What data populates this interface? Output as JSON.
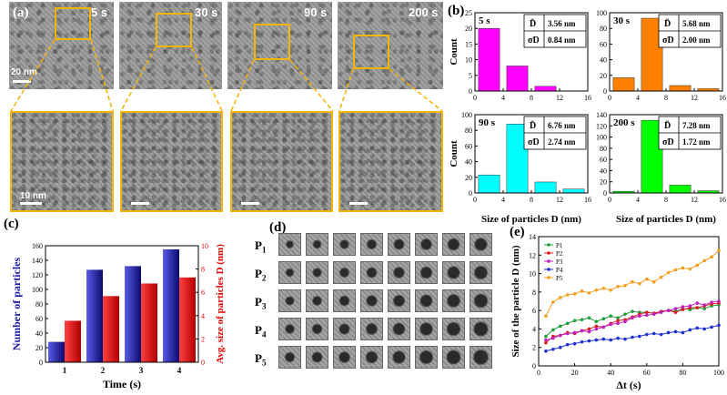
{
  "panel_a": {
    "label": "(a)",
    "frames": [
      "5 s",
      "30 s",
      "90 s",
      "200 s"
    ],
    "scale_top": "20 nm",
    "scale_bottom": "10 nm"
  },
  "panel_b": {
    "label": "(b)",
    "xlabel": "Size of particles D (nm)",
    "ylabel": "Count",
    "mean_symbol": "D̄",
    "sigma_symbol": "σD",
    "histograms": [
      {
        "time": "5 s",
        "mean": "3.56 nm",
        "sigma": "0.84 nm",
        "color": "#ff00ff"
      },
      {
        "time": "30 s",
        "mean": "5.68 nm",
        "sigma": "2.00 nm",
        "color": "#ff8000"
      },
      {
        "time": "90 s",
        "mean": "6.76 nm",
        "sigma": "2.74 nm",
        "color": "#00ffff"
      },
      {
        "time": "200 s",
        "mean": "7.28 nm",
        "sigma": "1.72 nm",
        "color": "#00ff00"
      }
    ]
  },
  "panel_c": {
    "label": "(c)",
    "xlabel": "Time (s)",
    "ylabel_left": "Number of particles",
    "ylabel_right": "Avg. size of particles D (nm)"
  },
  "panel_d": {
    "label": "(d)",
    "rows": [
      "P1",
      "P2",
      "P3",
      "P4",
      "P5"
    ],
    "row_main": "P",
    "row_subs": [
      "1",
      "2",
      "3",
      "4",
      "5"
    ]
  },
  "panel_e": {
    "label": "(e)",
    "xlabel": "Δt (s)",
    "ylabel": "Size of the particle D (nm)",
    "legend": [
      "P1",
      "P2",
      "P3",
      "P4",
      "P5"
    ]
  },
  "chart_data": [
    {
      "type": "bar",
      "panel": "b",
      "title": "5 s",
      "categories": [
        2,
        6,
        10,
        14
      ],
      "values": [
        20,
        8,
        1.5,
        0
      ],
      "xlim": [
        0,
        16
      ],
      "ylim": [
        0,
        25
      ],
      "yticks": [
        0,
        5,
        10,
        15,
        20,
        25
      ],
      "xticks": [
        0,
        4,
        8,
        12,
        16
      ],
      "color": "#ff00ff"
    },
    {
      "type": "bar",
      "panel": "b",
      "title": "30 s",
      "categories": [
        2,
        6,
        10,
        14
      ],
      "values": [
        17,
        93,
        7,
        3
      ],
      "xlim": [
        0,
        16
      ],
      "ylim": [
        0,
        100
      ],
      "yticks": [
        0,
        20,
        40,
        60,
        80,
        100
      ],
      "xticks": [
        0,
        4,
        8,
        12,
        16
      ],
      "color": "#ff8000"
    },
    {
      "type": "bar",
      "panel": "b",
      "title": "90 s",
      "categories": [
        2,
        6,
        10,
        14
      ],
      "values": [
        23,
        88,
        14,
        5
      ],
      "xlim": [
        0,
        16
      ],
      "ylim": [
        0,
        100
      ],
      "yticks": [
        0,
        20,
        40,
        60,
        80,
        100
      ],
      "xticks": [
        0,
        4,
        8,
        12,
        16
      ],
      "color": "#00ffff"
    },
    {
      "type": "bar",
      "panel": "b",
      "title": "200 s",
      "categories": [
        2,
        6,
        10,
        14
      ],
      "values": [
        3,
        130,
        14,
        4
      ],
      "xlim": [
        0,
        16
      ],
      "ylim": [
        0,
        140
      ],
      "yticks": [
        0,
        20,
        40,
        60,
        80,
        100,
        120,
        140
      ],
      "xticks": [
        0,
        4,
        8,
        12,
        16
      ],
      "color": "#00ff00"
    },
    {
      "type": "bar",
      "panel": "c",
      "categories": [
        "1",
        "2",
        "3",
        "4"
      ],
      "series": [
        {
          "axis": "left",
          "values": [
            28,
            127,
            132,
            155
          ],
          "color": "#1a1aa6"
        },
        {
          "axis": "right",
          "values": [
            3.56,
            5.68,
            6.76,
            7.28
          ],
          "color": "#e00000"
        }
      ],
      "ylim_left": [
        0,
        160
      ],
      "ylim_right": [
        0,
        10
      ],
      "yticks_left": [
        0,
        20,
        40,
        60,
        80,
        100,
        120,
        140,
        160
      ],
      "yticks_right": [
        0,
        2,
        4,
        6,
        8,
        10
      ],
      "xlabel": "Time (s)"
    },
    {
      "type": "line",
      "panel": "e",
      "x": [
        4,
        8,
        12,
        16,
        20,
        24,
        28,
        32,
        36,
        40,
        44,
        48,
        52,
        56,
        60,
        64,
        68,
        72,
        76,
        80,
        84,
        88,
        92,
        96,
        100
      ],
      "series": [
        {
          "name": "P1",
          "color": "#1f9e3a",
          "values": [
            3.2,
            3.9,
            4.3,
            4.6,
            4.9,
            5.0,
            5.2,
            4.8,
            5.1,
            5.4,
            5.2,
            5.6,
            5.9,
            5.8,
            5.8,
            5.7,
            5.9,
            6.0,
            5.9,
            6.2,
            6.1,
            6.3,
            6.2,
            6.5,
            6.6
          ]
        },
        {
          "name": "P2",
          "color": "#d62020",
          "values": [
            2.5,
            3.2,
            3.3,
            3.6,
            3.5,
            3.8,
            4.0,
            4.3,
            4.2,
            4.6,
            4.9,
            5.0,
            5.3,
            5.6,
            5.8,
            5.7,
            5.9,
            6.0,
            5.8,
            6.1,
            6.3,
            6.3,
            6.5,
            6.7,
            6.8
          ]
        },
        {
          "name": "P3",
          "color": "#c020c0",
          "values": [
            2.8,
            3.0,
            3.3,
            3.5,
            3.6,
            3.8,
            3.7,
            4.0,
            4.2,
            4.5,
            4.6,
            4.8,
            5.2,
            5.4,
            5.5,
            5.6,
            5.8,
            6.0,
            6.2,
            6.4,
            6.5,
            6.8,
            6.6,
            6.9,
            7.0
          ]
        },
        {
          "name": "P4",
          "color": "#2030d0",
          "values": [
            1.6,
            1.8,
            2.0,
            2.3,
            2.4,
            2.6,
            2.7,
            2.8,
            2.9,
            2.8,
            3.0,
            2.9,
            3.1,
            3.2,
            3.4,
            3.5,
            3.4,
            3.6,
            3.7,
            3.6,
            3.9,
            4.1,
            4.0,
            4.2,
            4.4
          ]
        },
        {
          "name": "P5",
          "color": "#f0a020",
          "values": [
            5.4,
            6.9,
            7.4,
            7.7,
            7.8,
            8.1,
            7.9,
            8.2,
            8.4,
            8.2,
            8.6,
            8.7,
            9.1,
            8.9,
            9.4,
            9.1,
            9.6,
            10.1,
            10.4,
            10.6,
            10.5,
            10.9,
            11.4,
            11.8,
            12.5
          ]
        }
      ],
      "xlim": [
        0,
        100
      ],
      "ylim": [
        0,
        14
      ],
      "xticks": [
        0,
        20,
        40,
        60,
        80,
        100
      ],
      "yticks": [
        0,
        2,
        4,
        6,
        8,
        10,
        12,
        14
      ],
      "legend_position": "top-left"
    }
  ]
}
